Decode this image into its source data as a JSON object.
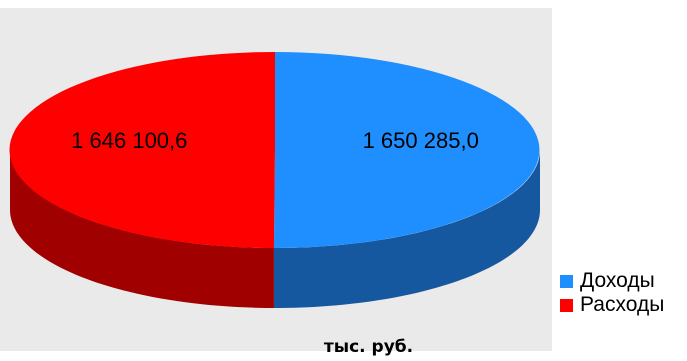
{
  "chart_data": {
    "type": "pie",
    "style": "3d",
    "categories": [
      "Доходы",
      "Расходы"
    ],
    "values": [
      1650285.0,
      1646100.6
    ],
    "data_labels": [
      "1 650 285,0",
      "1 646 100,6"
    ],
    "colors": [
      "#1f8fff",
      "#ff0000"
    ],
    "side_colors": [
      "#1558a0",
      "#a00000"
    ],
    "legend_placement": "bottom-right",
    "units": "тыс. руб."
  }
}
